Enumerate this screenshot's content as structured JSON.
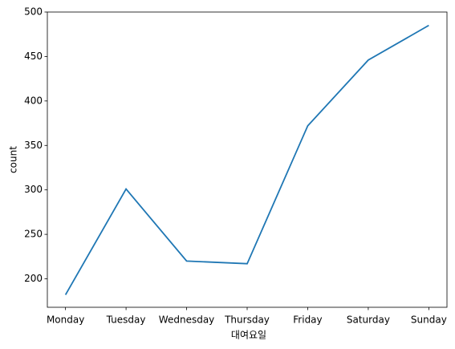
{
  "chart_data": {
    "type": "line",
    "x_label": "대여요일",
    "y_label": "count",
    "categories": [
      "Monday",
      "Tuesday",
      "Wednesday",
      "Thursday",
      "Friday",
      "Saturday",
      "Sunday"
    ],
    "values": [
      182,
      301,
      220,
      217,
      372,
      446,
      485
    ],
    "color": "#1f77b4",
    "ylim": [
      168,
      500
    ],
    "yticks": [
      200,
      250,
      300,
      350,
      400,
      450,
      500
    ],
    "grid": false
  }
}
